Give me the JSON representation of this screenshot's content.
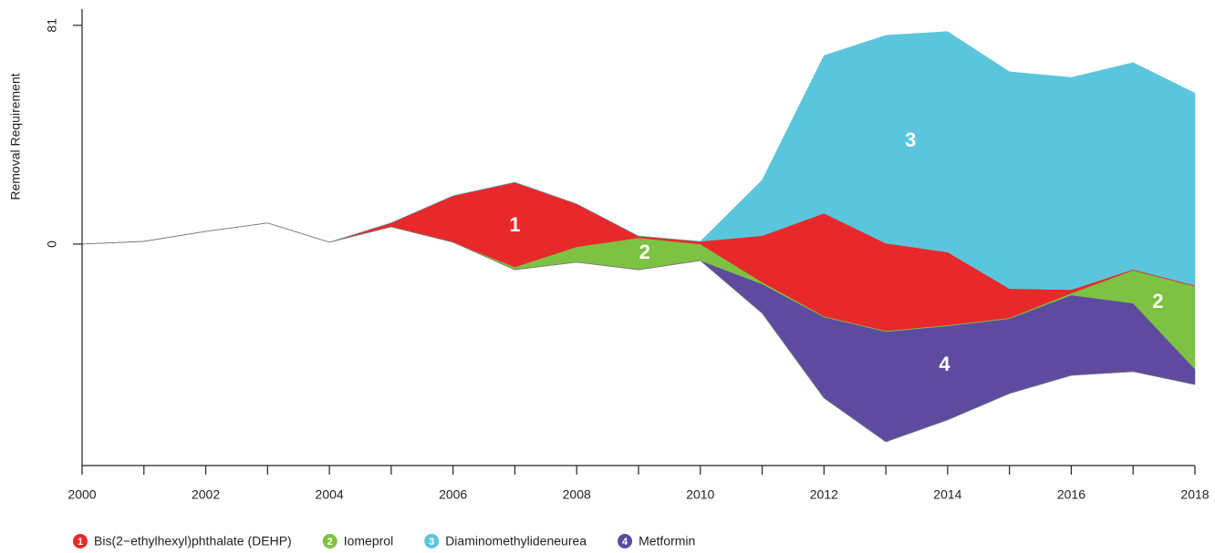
{
  "chart_data": {
    "type": "stream",
    "ylabel": "Removal Requirement",
    "x": [
      2000,
      2001,
      2002,
      2003,
      2004,
      2005,
      2006,
      2007,
      2008,
      2009,
      2010,
      2011,
      2012,
      2013,
      2014,
      2015,
      2016,
      2017,
      2018
    ],
    "xlim": [
      2000,
      2018
    ],
    "xticks": [
      2000,
      2002,
      2004,
      2006,
      2008,
      2010,
      2012,
      2014,
      2016,
      2018
    ],
    "xticks_minor": [
      2001,
      2003,
      2005,
      2007,
      2009,
      2011,
      2013,
      2015,
      2017
    ],
    "ylim": [
      -82,
      87
    ],
    "yticks": [
      0,
      81
    ],
    "baseline": [
      0,
      1,
      4.7,
      7.8,
      0.7,
      6.4,
      0.7,
      -9.5,
      -6.7,
      -9.5,
      -6.1,
      -25.6,
      -57,
      -73.2,
      -65.1,
      -55.3,
      -48.6,
      -47.2,
      -52
    ],
    "stack_order": [
      3,
      1,
      0,
      2
    ],
    "series": [
      {
        "name": "Bis(2−ethylhexyl)phthalate (DEHP)",
        "label": "1",
        "color": "#e8292b",
        "values": [
          0,
          0,
          0,
          0,
          0,
          1.5,
          17.2,
          31.4,
          15.9,
          0.7,
          1,
          17.2,
          38.1,
          32.4,
          27,
          10.8,
          1.3,
          0.3,
          0.3
        ]
      },
      {
        "name": "Iomeprol",
        "label": "2",
        "color": "#7dc242",
        "values": [
          0,
          0,
          0,
          0,
          0,
          0,
          0,
          1,
          5.7,
          11.8,
          6.1,
          0.7,
          0.3,
          0.3,
          0.3,
          0.3,
          0.7,
          12.2,
          30.7
        ]
      },
      {
        "name": "Diaminomethylideneurea",
        "label": "3",
        "color": "#5bc5db",
        "values": [
          0,
          0,
          0,
          0,
          0,
          0,
          0,
          0,
          0,
          0,
          0,
          20.6,
          58.4,
          77,
          81.7,
          80.3,
          78.6,
          76.6,
          71.2
        ]
      },
      {
        "name": "Metformin",
        "label": "4",
        "color": "#5e4ba0",
        "values": [
          0,
          0,
          0,
          0,
          0,
          0,
          0,
          0,
          0,
          0,
          0,
          10.8,
          30,
          40.8,
          34.8,
          27.7,
          29.7,
          25.3,
          5.7
        ]
      }
    ],
    "annotations": [
      {
        "series": 0,
        "x": 2007,
        "y": 6.7
      },
      {
        "series": 1,
        "x": 2009.1,
        "y": -3.4
      },
      {
        "series": 2,
        "x": 2013.4,
        "y": 38
      },
      {
        "series": 3,
        "x": 2013.95,
        "y": -44.9
      },
      {
        "series": 1,
        "x": 2017.4,
        "y": -21.6
      }
    ]
  }
}
